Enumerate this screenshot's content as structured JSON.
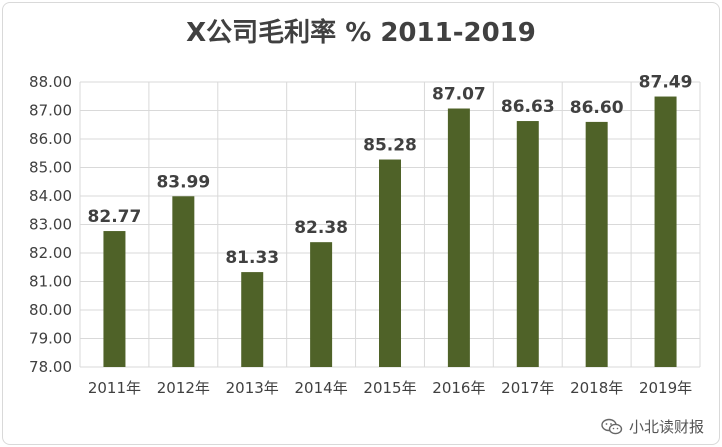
{
  "chart_data": {
    "type": "bar",
    "title": "X公司毛利率 % 2011-2019",
    "categories": [
      "2011年",
      "2012年",
      "2013年",
      "2014年",
      "2015年",
      "2016年",
      "2017年",
      "2018年",
      "2019年"
    ],
    "values": [
      82.77,
      83.99,
      81.33,
      82.38,
      85.28,
      87.07,
      86.63,
      86.6,
      87.49
    ],
    "value_labels": [
      "82.77",
      "83.99",
      "81.33",
      "82.38",
      "85.28",
      "87.07",
      "86.63",
      "86.60",
      "87.49"
    ],
    "ylim": [
      78.0,
      88.0
    ],
    "yticks": [
      "78.00",
      "79.00",
      "80.00",
      "81.00",
      "82.00",
      "83.00",
      "84.00",
      "85.00",
      "86.00",
      "87.00",
      "88.00"
    ],
    "grid": true,
    "bar_color": "#4f6228",
    "xlabel": "",
    "ylabel": ""
  },
  "watermark": {
    "text": "小北读财报",
    "icon": "wechat-icon"
  }
}
